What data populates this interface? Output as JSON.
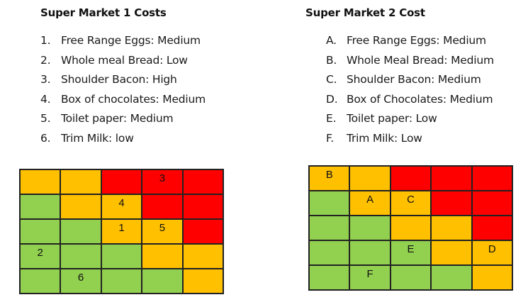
{
  "supermarket1": {
    "title": "Super Market 1 Costs",
    "items": [
      {
        "marker": "1.",
        "text": "Free Range Eggs: Medium"
      },
      {
        "marker": "2.",
        "text": "Whole meal Bread: Low"
      },
      {
        "marker": "3.",
        "text": "Shoulder Bacon: High"
      },
      {
        "marker": "4.",
        "text": "Box of chocolates: Medium"
      },
      {
        "marker": "5.",
        "text": "Toilet paper: Medium"
      },
      {
        "marker": "6.",
        "text": "Trim Milk: low"
      }
    ],
    "grid": {
      "colors": [
        [
          "o",
          "o",
          "r",
          "r",
          "r"
        ],
        [
          "g",
          "o",
          "o",
          "r",
          "r"
        ],
        [
          "g",
          "g",
          "o",
          "o",
          "r"
        ],
        [
          "g",
          "g",
          "g",
          "o",
          "o"
        ],
        [
          "g",
          "g",
          "g",
          "g",
          "o"
        ]
      ],
      "labels": [
        [
          "",
          "",
          "",
          "3",
          ""
        ],
        [
          "",
          "",
          "4",
          "",
          ""
        ],
        [
          "",
          "",
          "1",
          "5",
          ""
        ],
        [
          "2",
          "",
          "",
          "",
          ""
        ],
        [
          "",
          "6",
          "",
          "",
          ""
        ]
      ]
    }
  },
  "supermarket2": {
    "title": "Super Market 2 Cost",
    "items": [
      {
        "marker": "A.",
        "text": "Free Range Eggs:  Medium"
      },
      {
        "marker": "B.",
        "text": "Whole Meal Bread: Medium"
      },
      {
        "marker": "C.",
        "text": "Shoulder Bacon: Medium"
      },
      {
        "marker": "D.",
        "text": "Box of Chocolates: Medium"
      },
      {
        "marker": "E.",
        "text": "Toilet paper: Low"
      },
      {
        "marker": "F.",
        "text": "Trim Milk: Low"
      }
    ],
    "grid": {
      "colors": [
        [
          "o",
          "o",
          "r",
          "r",
          "r"
        ],
        [
          "g",
          "o",
          "o",
          "r",
          "r"
        ],
        [
          "g",
          "g",
          "o",
          "o",
          "r"
        ],
        [
          "g",
          "g",
          "g",
          "o",
          "o"
        ],
        [
          "g",
          "g",
          "g",
          "g",
          "o"
        ]
      ],
      "labels": [
        [
          "B",
          "",
          "",
          "",
          ""
        ],
        [
          "",
          "A",
          "C",
          "",
          ""
        ],
        [
          "",
          "",
          "",
          "",
          ""
        ],
        [
          "",
          "",
          "E",
          "",
          "D"
        ],
        [
          "",
          "F",
          "",
          "",
          ""
        ]
      ]
    }
  },
  "legend_colors": {
    "low": "#92d050",
    "medium": "#ffc000",
    "high": "#ff0000"
  }
}
